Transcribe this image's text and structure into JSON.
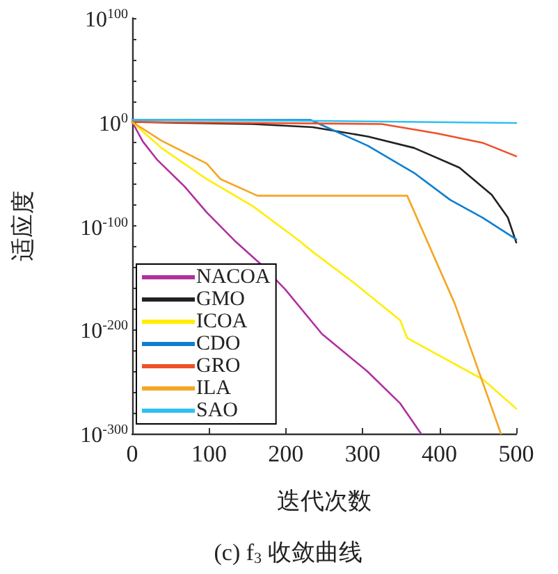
{
  "chart_data": {
    "type": "line",
    "title": "(c) f$_{3}$ 收敛曲线",
    "xlabel": "迭代次数",
    "ylabel": "适应度",
    "log": "y",
    "xlim": [
      0,
      500
    ],
    "xticks": [
      0,
      100,
      200,
      300,
      400,
      500
    ],
    "ylim": [
      1e-300,
      1e+100
    ],
    "yticks": [
      {
        "value": 1e+100,
        "label": "10$^{100}$"
      },
      {
        "value": 1e+80,
        "label": null
      },
      {
        "value": 1e+60,
        "label": null
      },
      {
        "value": 1e+40,
        "label": null
      },
      {
        "value": 1e+20,
        "label": null
      },
      {
        "value": 1,
        "label": "10$^{0}$"
      },
      {
        "value": 1e-20,
        "label": null
      },
      {
        "value": 1e-40,
        "label": null
      },
      {
        "value": 1e-60,
        "label": null
      },
      {
        "value": 1e-80,
        "label": null
      },
      {
        "value": 1e-100,
        "label": "10$^{-100}$"
      },
      {
        "value": 1e-120,
        "label": null
      },
      {
        "value": 1e-140,
        "label": null
      },
      {
        "value": 1e-160,
        "label": null
      },
      {
        "value": 1e-180,
        "label": null
      },
      {
        "value": 1e-200,
        "label": "10$^{-200}$"
      },
      {
        "value": 1e-220,
        "label": null
      },
      {
        "value": 1e-240,
        "label": null
      },
      {
        "value": 1e-260,
        "label": null
      },
      {
        "value": 1e-280,
        "label": null
      },
      {
        "value": 1e-300,
        "label": "10$^{-300}$"
      }
    ],
    "grid": false,
    "legend": "bottom left",
    "marker": "none",
    "line_style": "solid",
    "series": [
      {
        "name": "NACOA",
        "color": "#b030a0",
        "x": [
          0,
          14,
          32,
          68,
          97,
          133,
          169,
          199,
          247,
          306,
          349,
          376
        ],
        "values": [
          1,
          1e-19,
          1e-36,
          1e-62,
          1e-87,
          1e-114,
          1e-138,
          1e-161,
          1e-204,
          1e-240,
          1e-271,
          1e-300
        ]
      },
      {
        "name": "GMO",
        "color": "#222222",
        "x": [
          0,
          157,
          235,
          307,
          367,
          426,
          468,
          489,
          500
        ],
        "values": [
          1,
          0.01,
          1e-05,
          1e-14,
          1e-25,
          1e-44,
          1e-70,
          1e-92,
          1e-116
        ]
      },
      {
        "name": "ICOA",
        "color": "#ffee00",
        "x": [
          0,
          38,
          97,
          157,
          217,
          235,
          289,
          349,
          358,
          457,
          500
        ],
        "values": [
          1,
          1e-25,
          1e-55,
          1e-81,
          1e-114,
          1e-125,
          1e-155,
          1e-191,
          1e-208,
          1e-248,
          1e-276
        ]
      },
      {
        "name": "CDO",
        "color": "#0f7fd0",
        "x": [
          0,
          232,
          247,
          307,
          367,
          414,
          456,
          500
        ],
        "values": [
          100.0,
          100.0,
          0.001,
          1e-23,
          1e-49,
          1e-75,
          1e-92,
          1e-113
        ]
      },
      {
        "name": "GRO",
        "color": "#f0502a",
        "x": [
          0,
          325,
          397,
          456,
          500
        ],
        "values": [
          1,
          0.01,
          1e-11,
          1e-20,
          1e-33
        ]
      },
      {
        "name": "ILA",
        "color": "#f5a623",
        "x": [
          0,
          38,
          97,
          115,
          163,
          358,
          420,
          480
        ],
        "values": [
          1,
          1e-18,
          1e-40,
          1e-55,
          1e-71,
          1e-71,
          1e-175,
          1e-300
        ]
      },
      {
        "name": "SAO",
        "color": "#30c0f0",
        "x": [
          0,
          250,
          500
        ],
        "values": [
          100.0,
          10.0,
          0.1
        ]
      }
    ]
  }
}
